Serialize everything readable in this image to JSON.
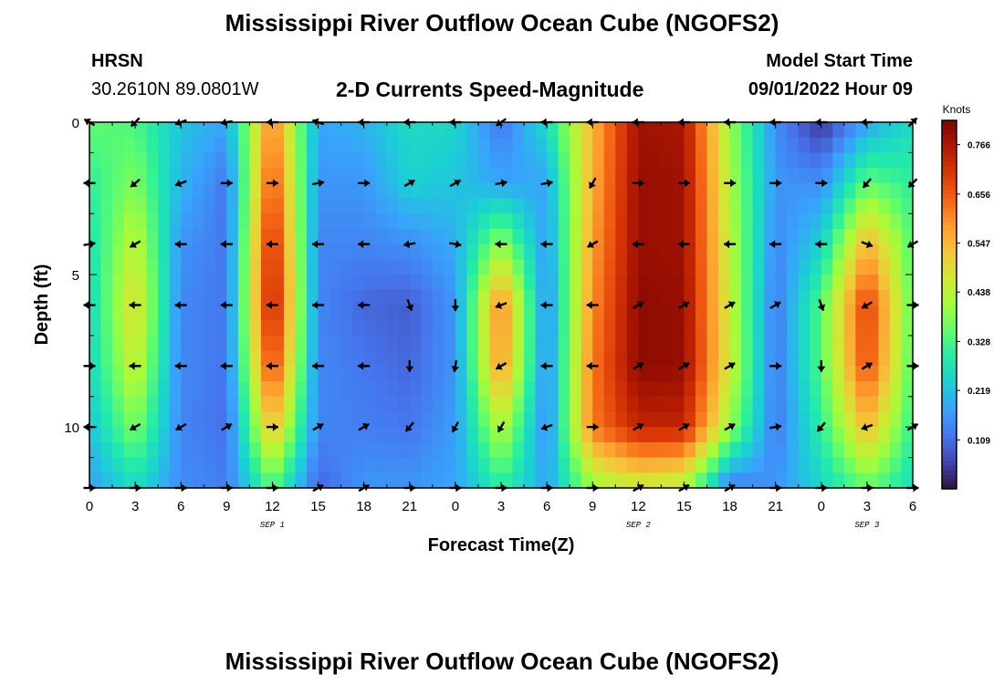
{
  "header": {
    "title": "Mississippi River Outflow Ocean Cube (NGOFS2)",
    "station_code": "HRSN",
    "station_coords": "30.2610N  89.0801W",
    "plot_subtitle": "2-D Currents Speed-Magnitude",
    "model_start_label": "Model Start Time",
    "model_start_value": "09/01/2022 Hour 09",
    "footer_title": "Mississippi River Outflow Ocean Cube (NGOFS2)"
  },
  "colors": {
    "colormap": [
      "#30123b",
      "#4145ab",
      "#4675ed",
      "#39a2fc",
      "#1bcfd4",
      "#24eca6",
      "#61fc6c",
      "#a4fc3b",
      "#d1e834",
      "#f3c63a",
      "#fe9b2d",
      "#f36315",
      "#d93806",
      "#b11901",
      "#7a0403"
    ]
  },
  "chart_data": {
    "type": "heatmap",
    "xlabel": "Forecast Time(Z)",
    "ylabel": "Depth (ft)",
    "x_range_hours": [
      0,
      54
    ],
    "ylim": [
      0,
      12
    ],
    "y_inverted": true,
    "x_ticks": [
      {
        "h": 0,
        "label": "0"
      },
      {
        "h": 3,
        "label": "3"
      },
      {
        "h": 6,
        "label": "6"
      },
      {
        "h": 9,
        "label": "9"
      },
      {
        "h": 12,
        "label": "12"
      },
      {
        "h": 15,
        "label": "15"
      },
      {
        "h": 18,
        "label": "18"
      },
      {
        "h": 21,
        "label": "21"
      },
      {
        "h": 24,
        "label": "0"
      },
      {
        "h": 27,
        "label": "3"
      },
      {
        "h": 30,
        "label": "6"
      },
      {
        "h": 33,
        "label": "9"
      },
      {
        "h": 36,
        "label": "12"
      },
      {
        "h": 39,
        "label": "15"
      },
      {
        "h": 42,
        "label": "18"
      },
      {
        "h": 45,
        "label": "21"
      },
      {
        "h": 48,
        "label": "0"
      },
      {
        "h": 51,
        "label": "3"
      },
      {
        "h": 54,
        "label": "6"
      }
    ],
    "y_ticks": [
      {
        "v": 0,
        "label": "0"
      },
      {
        "v": 5,
        "label": "5"
      },
      {
        "v": 10,
        "label": "10"
      }
    ],
    "date_labels": [
      {
        "h": 12,
        "label": "SEP 1"
      },
      {
        "h": 36,
        "label": "SEP 2"
      },
      {
        "h": 51,
        "label": "SEP 3"
      }
    ],
    "colorbar": {
      "unit": "Knots",
      "ticks": [
        "0.766",
        "0.656",
        "0.547",
        "0.438",
        "0.328",
        "0.219",
        "0.109"
      ],
      "range": [
        0.0,
        0.82
      ]
    },
    "depths_ft": [
      0,
      2,
      4,
      6,
      8,
      10,
      12
    ],
    "hours": [
      0,
      3,
      6,
      9,
      12,
      15,
      18,
      21,
      24,
      27,
      30,
      33,
      36,
      39,
      42,
      45,
      48,
      51,
      54
    ],
    "speed_knots": [
      [
        0.35,
        0.33,
        0.22,
        0.18,
        0.62,
        0.18,
        0.2,
        0.26,
        0.25,
        0.12,
        0.26,
        0.55,
        0.78,
        0.77,
        0.4,
        0.15,
        0.04,
        0.18,
        0.26
      ],
      [
        0.3,
        0.38,
        0.2,
        0.12,
        0.68,
        0.16,
        0.16,
        0.24,
        0.22,
        0.18,
        0.18,
        0.56,
        0.79,
        0.78,
        0.42,
        0.16,
        0.15,
        0.35,
        0.3
      ],
      [
        0.27,
        0.45,
        0.16,
        0.12,
        0.74,
        0.14,
        0.14,
        0.15,
        0.19,
        0.4,
        0.16,
        0.58,
        0.79,
        0.78,
        0.44,
        0.14,
        0.24,
        0.56,
        0.33
      ],
      [
        0.25,
        0.5,
        0.14,
        0.12,
        0.77,
        0.14,
        0.1,
        0.09,
        0.16,
        0.62,
        0.14,
        0.6,
        0.8,
        0.79,
        0.45,
        0.12,
        0.34,
        0.7,
        0.34
      ],
      [
        0.25,
        0.46,
        0.14,
        0.12,
        0.7,
        0.14,
        0.12,
        0.1,
        0.16,
        0.6,
        0.14,
        0.62,
        0.8,
        0.79,
        0.46,
        0.12,
        0.34,
        0.68,
        0.33
      ],
      [
        0.22,
        0.38,
        0.14,
        0.11,
        0.55,
        0.14,
        0.13,
        0.12,
        0.17,
        0.44,
        0.14,
        0.62,
        0.74,
        0.74,
        0.4,
        0.12,
        0.3,
        0.55,
        0.3
      ],
      [
        0.17,
        0.26,
        0.15,
        0.13,
        0.34,
        0.1,
        0.16,
        0.16,
        0.18,
        0.3,
        0.18,
        0.4,
        0.45,
        0.42,
        0.12,
        0.16,
        0.25,
        0.35,
        0.26
      ]
    ],
    "vectors_note": "direction of current in degrees (compass, 0 = north, 90 = east) at each depth x hour, drawn as arrows",
    "direction_deg": [
      [
        300,
        225,
        250,
        260,
        270,
        290,
        270,
        270,
        270,
        235,
        270,
        270,
        270,
        270,
        270,
        270,
        270,
        270,
        45
      ],
      [
        270,
        230,
        250,
        90,
        90,
        80,
        90,
        60,
        60,
        80,
        80,
        210,
        90,
        90,
        90,
        90,
        90,
        220,
        225
      ],
      [
        80,
        240,
        270,
        270,
        270,
        270,
        270,
        260,
        100,
        270,
        270,
        240,
        270,
        270,
        270,
        270,
        270,
        110,
        240
      ],
      [
        270,
        270,
        270,
        270,
        270,
        270,
        270,
        160,
        180,
        250,
        270,
        270,
        60,
        60,
        60,
        60,
        160,
        240,
        90
      ],
      [
        90,
        270,
        270,
        270,
        270,
        270,
        270,
        180,
        190,
        240,
        270,
        270,
        60,
        60,
        60,
        90,
        180,
        60,
        90
      ],
      [
        270,
        240,
        240,
        60,
        90,
        60,
        60,
        220,
        210,
        210,
        250,
        90,
        60,
        60,
        60,
        80,
        220,
        250,
        60
      ],
      [
        90,
        90,
        90,
        90,
        90,
        60,
        60,
        90,
        90,
        90,
        90,
        90,
        60,
        60,
        60,
        90,
        90,
        90,
        90
      ]
    ]
  }
}
